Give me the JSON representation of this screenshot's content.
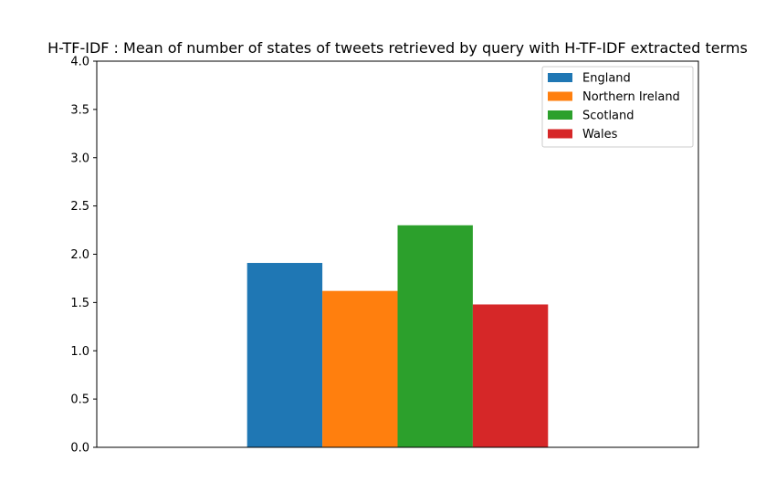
{
  "chart_data": {
    "type": "bar",
    "title": "H-TF-IDF : Mean of number of states of tweets retrieved by query with H-TF-IDF extracted terms",
    "xlabel": "",
    "ylabel": "",
    "ylim": [
      0,
      4
    ],
    "yticks": [
      "0.0",
      "0.5",
      "1.0",
      "1.5",
      "2.0",
      "2.5",
      "3.0",
      "3.5",
      "4.0"
    ],
    "grid": false,
    "legend_position": "top-right",
    "series": [
      {
        "name": "England",
        "value": 1.91,
        "color": "#1f77b4"
      },
      {
        "name": "Northern Ireland",
        "value": 1.62,
        "color": "#ff7f0e"
      },
      {
        "name": "Scotland",
        "value": 2.3,
        "color": "#2ca02c"
      },
      {
        "name": "Wales",
        "value": 1.48,
        "color": "#d62728"
      }
    ]
  }
}
